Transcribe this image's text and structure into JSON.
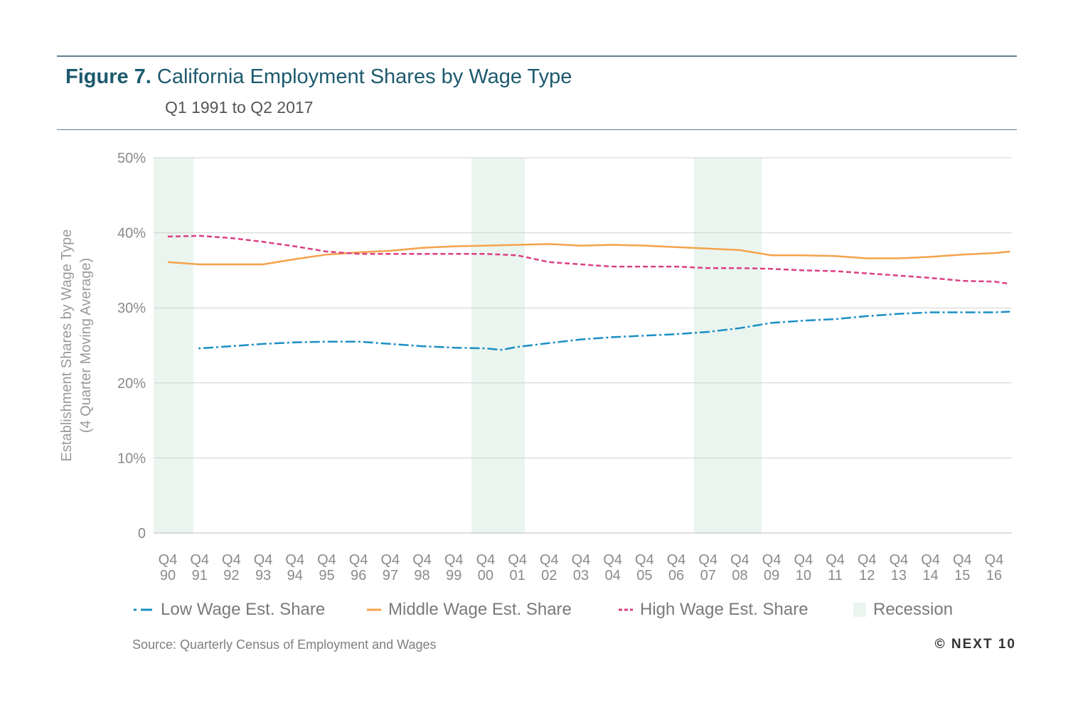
{
  "header": {
    "figure_label": "Figure 7.",
    "title": "California Employment Shares by Wage Type",
    "subtitle": "Q1 1991 to Q2 2017"
  },
  "footer": {
    "source": "Source: Quarterly Census of Employment and Wages",
    "copyright": "© NEXT 10"
  },
  "chart_data": {
    "type": "line",
    "ylabel_line1": "Establishment Shares by Wage Type",
    "ylabel_line2": "(4 Quarter Moving Average)",
    "ylim": [
      0,
      50
    ],
    "yticks": [
      "0",
      "10%",
      "20%",
      "30%",
      "40%",
      "50%"
    ],
    "xtick_top": [
      "Q4",
      "Q4",
      "Q4",
      "Q4",
      "Q4",
      "Q4",
      "Q4",
      "Q4",
      "Q4",
      "Q4",
      "Q4",
      "Q4",
      "Q4",
      "Q4",
      "Q4",
      "Q4",
      "Q4",
      "Q4",
      "Q4",
      "Q4",
      "Q4",
      "Q4",
      "Q4",
      "Q4",
      "Q4",
      "Q4",
      "Q4"
    ],
    "xtick_bottom": [
      "90",
      "91",
      "92",
      "93",
      "94",
      "95",
      "96",
      "97",
      "98",
      "99",
      "00",
      "01",
      "02",
      "03",
      "04",
      "05",
      "06",
      "07",
      "08",
      "09",
      "10",
      "11",
      "12",
      "13",
      "14",
      "15",
      "16"
    ],
    "x_start": "Q1 1991",
    "x_end": "Q2 2017",
    "grid": true,
    "legend_position": "bottom",
    "series": [
      {
        "name": "Low Wage Est. Share",
        "color": "#1a8fc4",
        "style": "dash-dot",
        "points": [
          [
            1990.97,
            24.7
          ],
          [
            1991,
            24.6
          ],
          [
            1992,
            24.9
          ],
          [
            1993,
            25.2
          ],
          [
            1994,
            25.4
          ],
          [
            1995,
            25.5
          ],
          [
            1996,
            25.5
          ],
          [
            1997,
            25.2
          ],
          [
            1998,
            24.9
          ],
          [
            1999,
            24.7
          ],
          [
            2000,
            24.6
          ],
          [
            2000.5,
            24.4
          ],
          [
            2001,
            24.8
          ],
          [
            2002,
            25.3
          ],
          [
            2003,
            25.8
          ],
          [
            2004,
            26.1
          ],
          [
            2005,
            26.3
          ],
          [
            2006,
            26.5
          ],
          [
            2007,
            26.8
          ],
          [
            2008,
            27.3
          ],
          [
            2009,
            28.0
          ],
          [
            2010,
            28.3
          ],
          [
            2011,
            28.5
          ],
          [
            2012,
            28.9
          ],
          [
            2013,
            29.2
          ],
          [
            2014,
            29.4
          ],
          [
            2015,
            29.4
          ],
          [
            2016,
            29.4
          ],
          [
            2016.5,
            29.5
          ]
        ]
      },
      {
        "name": "Middle Wage Est. Share",
        "color": "#f5a24b",
        "style": "solid",
        "points": [
          [
            1990,
            36.1
          ],
          [
            1991,
            35.8
          ],
          [
            1992,
            35.8
          ],
          [
            1993,
            35.8
          ],
          [
            1994,
            36.5
          ],
          [
            1995,
            37.1
          ],
          [
            1996,
            37.4
          ],
          [
            1997,
            37.6
          ],
          [
            1998,
            38.0
          ],
          [
            1999,
            38.2
          ],
          [
            2000,
            38.3
          ],
          [
            2001,
            38.4
          ],
          [
            2002,
            38.5
          ],
          [
            2003,
            38.3
          ],
          [
            2004,
            38.4
          ],
          [
            2005,
            38.3
          ],
          [
            2006,
            38.1
          ],
          [
            2007,
            37.9
          ],
          [
            2008,
            37.7
          ],
          [
            2009,
            37.0
          ],
          [
            2010,
            37.0
          ],
          [
            2011,
            36.9
          ],
          [
            2012,
            36.6
          ],
          [
            2013,
            36.6
          ],
          [
            2014,
            36.8
          ],
          [
            2015,
            37.1
          ],
          [
            2016,
            37.3
          ],
          [
            2016.5,
            37.5
          ]
        ]
      },
      {
        "name": "High Wage Est. Share",
        "color": "#dc3f82",
        "style": "dashed",
        "points": [
          [
            1990,
            39.5
          ],
          [
            1991,
            39.6
          ],
          [
            1992,
            39.3
          ],
          [
            1993,
            38.8
          ],
          [
            1994,
            38.2
          ],
          [
            1995,
            37.5
          ],
          [
            1996,
            37.2
          ],
          [
            1997,
            37.2
          ],
          [
            1998,
            37.2
          ],
          [
            1999,
            37.2
          ],
          [
            2000,
            37.2
          ],
          [
            2001,
            37.0
          ],
          [
            2002,
            36.1
          ],
          [
            2003,
            35.8
          ],
          [
            2004,
            35.5
          ],
          [
            2005,
            35.5
          ],
          [
            2006,
            35.5
          ],
          [
            2007,
            35.3
          ],
          [
            2008,
            35.3
          ],
          [
            2009,
            35.2
          ],
          [
            2010,
            35.0
          ],
          [
            2011,
            34.9
          ],
          [
            2012,
            34.6
          ],
          [
            2013,
            34.3
          ],
          [
            2014,
            34.0
          ],
          [
            2015,
            33.6
          ],
          [
            2016,
            33.5
          ],
          [
            2016.5,
            33.2
          ]
        ]
      }
    ],
    "recession_label": "Recession",
    "recession_color": "#eaf5ef",
    "recessions": [
      [
        1990,
        1990.67
      ],
      [
        2000,
        2001.1
      ],
      [
        2007,
        2008.55
      ]
    ]
  }
}
